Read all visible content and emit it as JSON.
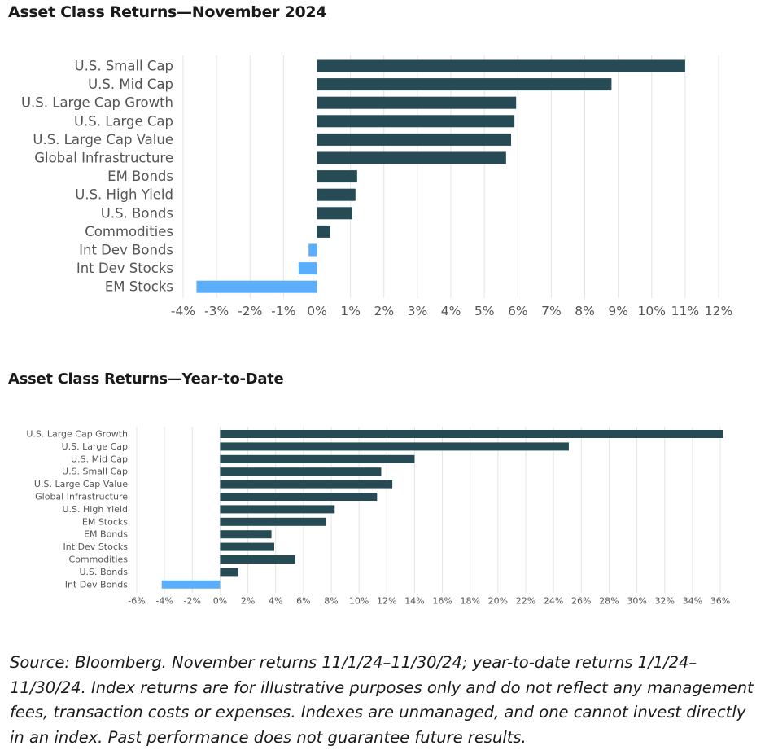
{
  "chart_data": [
    {
      "type": "bar",
      "orientation": "horizontal",
      "title": "Asset Class Returns—November 2024",
      "categories": [
        "U.S. Small Cap",
        "U.S. Mid Cap",
        "U.S. Large Cap Growth",
        "U.S. Large Cap",
        "U.S. Large Cap Value",
        "Global Infrastructure",
        "EM Bonds",
        "U.S. High Yield",
        "U.S. Bonds",
        "Commodities",
        "Int Dev Bonds",
        "Int Dev Stocks",
        "EM Stocks"
      ],
      "values": [
        11.0,
        8.8,
        5.95,
        5.9,
        5.8,
        5.65,
        1.2,
        1.15,
        1.05,
        0.4,
        -0.25,
        -0.55,
        -3.6
      ],
      "xlim": [
        -4,
        12
      ],
      "xticks": [
        -4,
        -3,
        -2,
        -1,
        0,
        1,
        2,
        3,
        4,
        5,
        6,
        7,
        8,
        9,
        10,
        11,
        12
      ],
      "tick_suffix": "%",
      "grid": "vertical",
      "colors": {
        "positive": "#264b55",
        "negative": "#5aaefc",
        "grid": "#e4e4e4",
        "text": "#555555"
      }
    },
    {
      "type": "bar",
      "orientation": "horizontal",
      "title": "Asset Class Returns—Year-to-Date",
      "categories": [
        "U.S. Large Cap Growth",
        "U.S. Large Cap",
        "U.S. Mid Cap",
        "U.S. Small Cap",
        "U.S. Large Cap Value",
        "Global Infrastructure",
        "U.S. High Yield",
        "EM Stocks",
        "EM Bonds",
        "Int Dev Stocks",
        "Commodities",
        "U.S. Bonds",
        "Int Dev Bonds"
      ],
      "values": [
        36.2,
        25.1,
        14.0,
        11.6,
        12.4,
        11.3,
        8.25,
        7.6,
        3.7,
        3.9,
        5.4,
        1.3,
        -4.2
      ],
      "xlim": [
        -6,
        36
      ],
      "xticks": [
        -6,
        -4,
        -2,
        0,
        2,
        4,
        6,
        8,
        10,
        12,
        14,
        16,
        18,
        20,
        22,
        24,
        26,
        28,
        30,
        32,
        34,
        36
      ],
      "tick_suffix": "%",
      "grid": "vertical",
      "colors": {
        "positive": "#264b55",
        "negative": "#5aaefc",
        "grid": "#e4e4e4",
        "text": "#555555"
      }
    }
  ],
  "source_note": "Source: Bloomberg. November returns 11/1/24–11/30/24; year-to-date returns 1/1/24–11/30/24. Index returns are for illustrative purposes only and do not reflect any management fees, transaction costs or expenses. Indexes are unmanaged, and one cannot invest directly in an index. Past performance does not guarantee future results."
}
